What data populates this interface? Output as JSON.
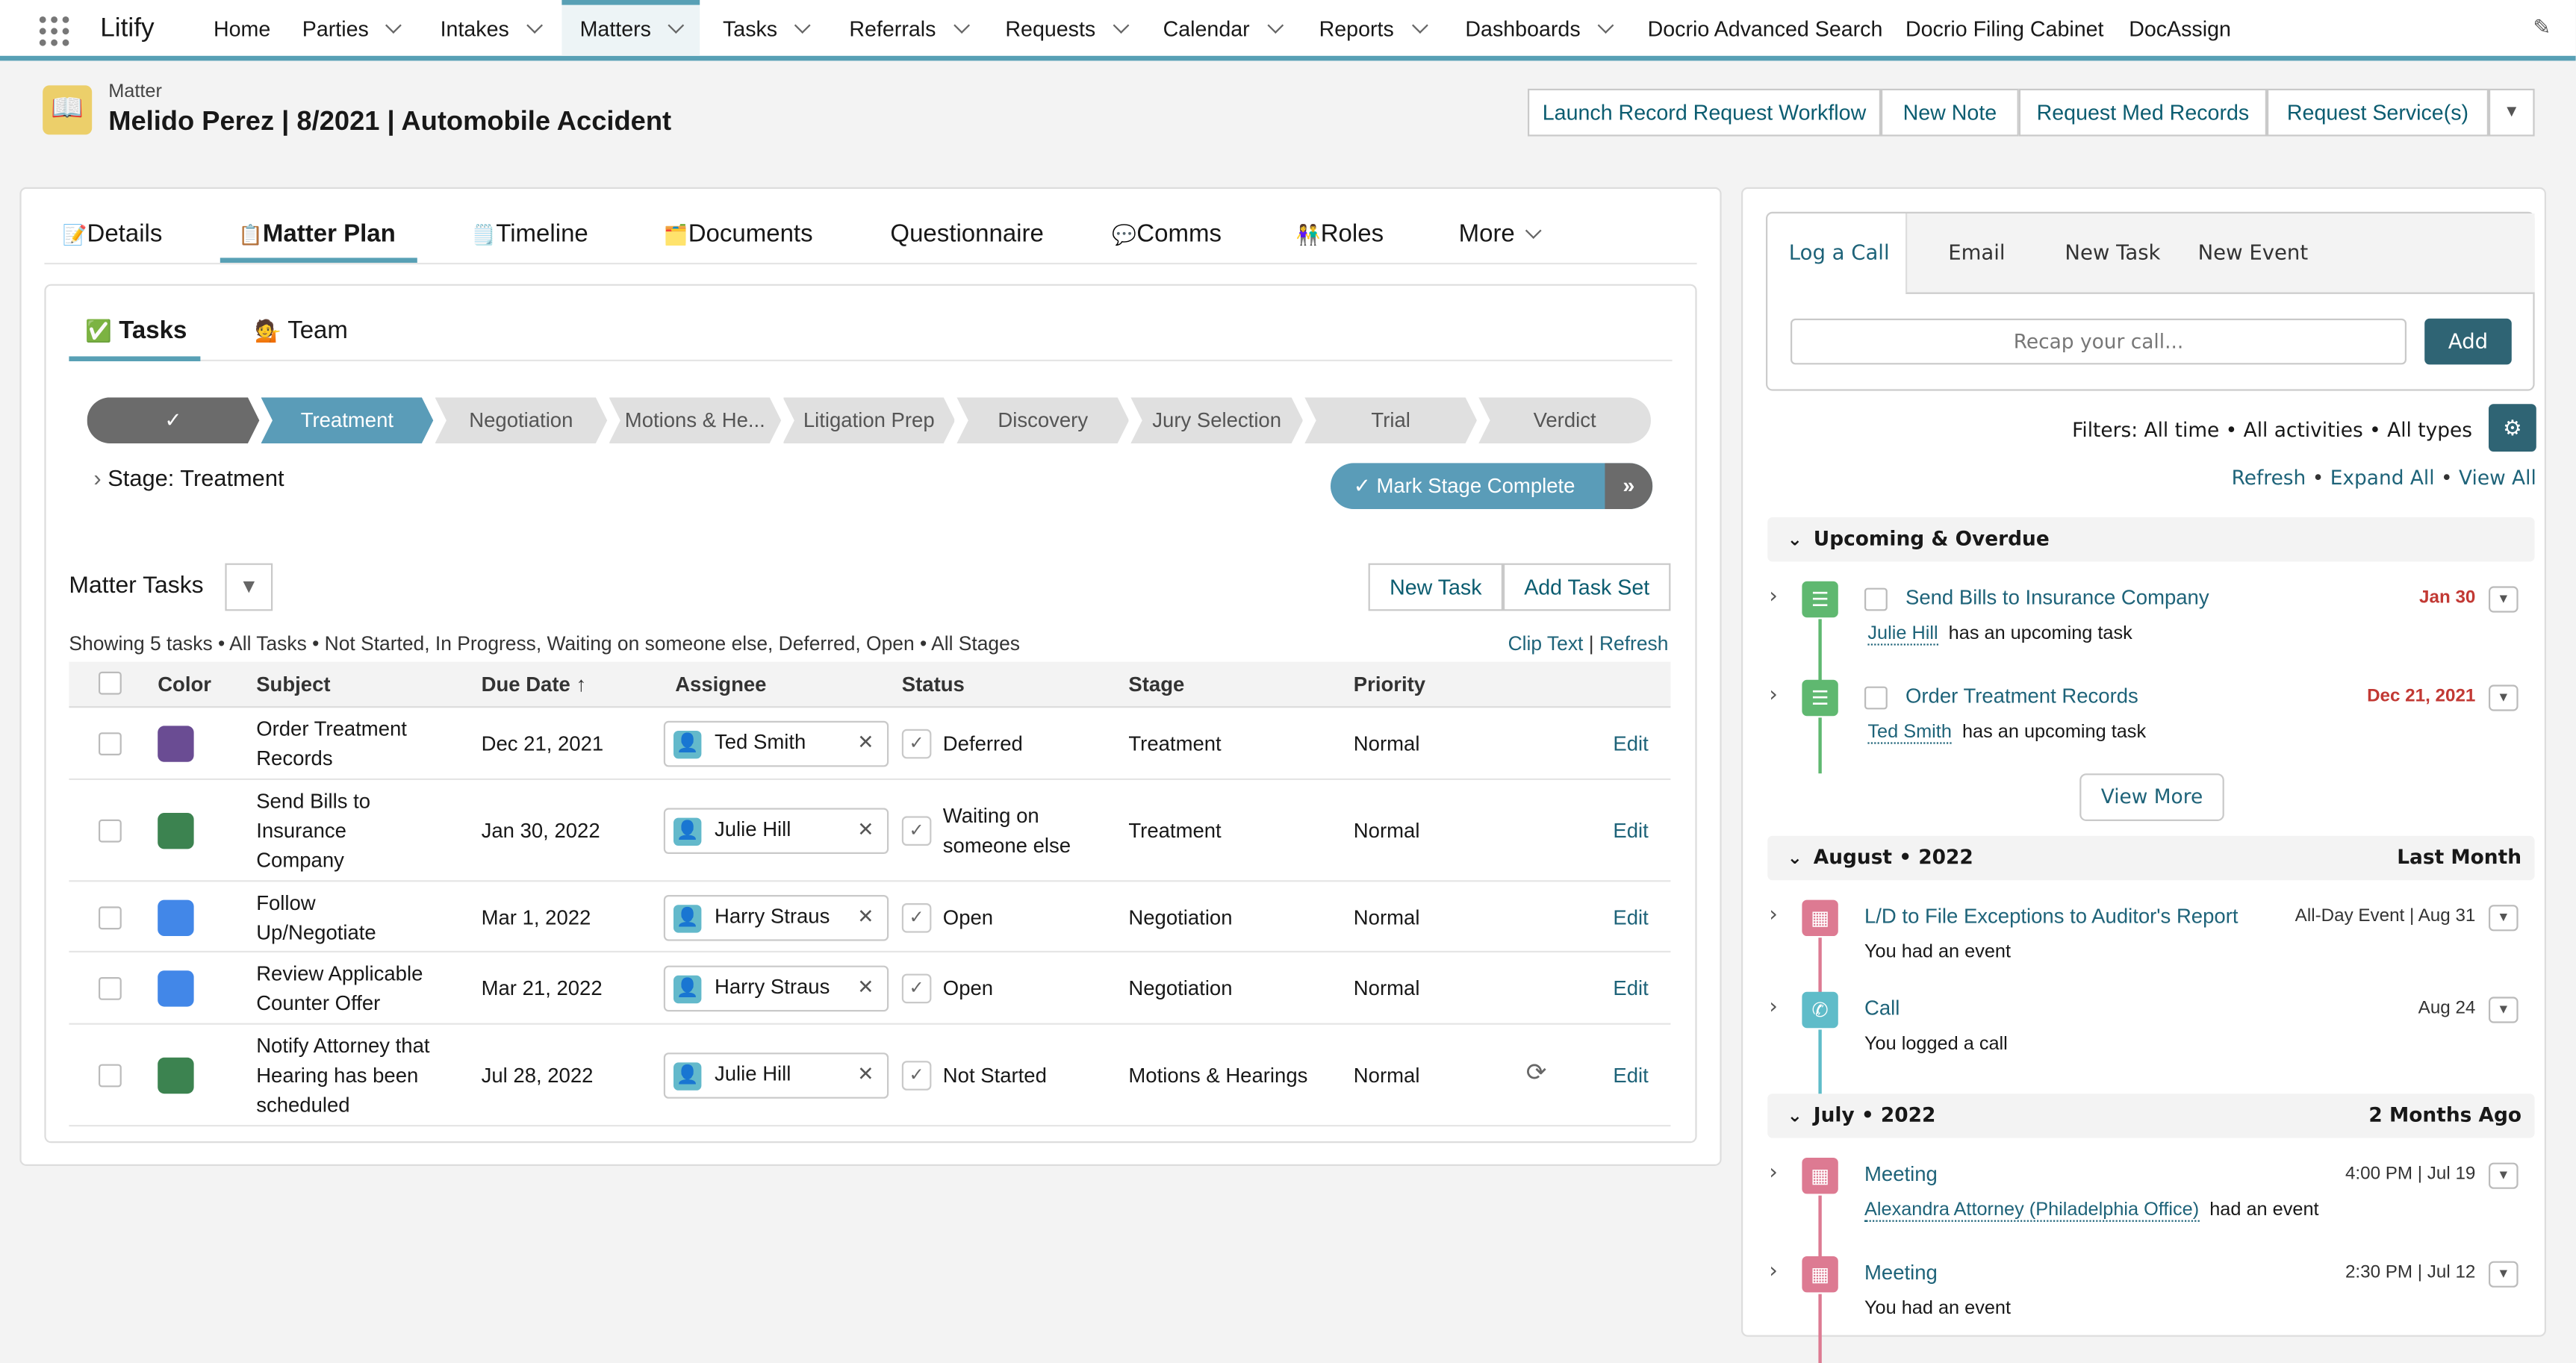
{
  "app": {
    "name": "Litify",
    "nav": [
      {
        "label": "Home",
        "dd": false
      },
      {
        "label": "Parties",
        "dd": true
      },
      {
        "label": "Intakes",
        "dd": true
      },
      {
        "label": "Matters",
        "dd": true,
        "active": true
      },
      {
        "label": "Tasks",
        "dd": true
      },
      {
        "label": "Referrals",
        "dd": true
      },
      {
        "label": "Requests",
        "dd": true
      },
      {
        "label": "Calendar",
        "dd": true
      },
      {
        "label": "Reports",
        "dd": true
      },
      {
        "label": "Dashboards",
        "dd": true
      },
      {
        "label": "Docrio Advanced Search",
        "dd": false
      },
      {
        "label": "Docrio Filing Cabinet",
        "dd": false
      },
      {
        "label": "DocAssign",
        "dd": false
      }
    ]
  },
  "header": {
    "object": "Matter",
    "title": "Melido Perez | 8/2021 | Automobile Accident",
    "actions": [
      "Launch Record Request Workflow",
      "New Note",
      "Request Med Records",
      "Request Service(s)"
    ]
  },
  "tabs": [
    {
      "icon": "📝",
      "label": "Details"
    },
    {
      "icon": "📋",
      "label": "Matter Plan",
      "active": true
    },
    {
      "icon": "🗒️",
      "label": "Timeline"
    },
    {
      "icon": "🗂️",
      "label": "Documents"
    },
    {
      "icon": "",
      "label": "Questionnaire"
    },
    {
      "icon": "💬",
      "label": "Comms"
    },
    {
      "icon": "👫",
      "label": "Roles"
    },
    {
      "icon": "",
      "label": "More"
    }
  ],
  "subtabs": [
    {
      "icon": "✅",
      "label": "Tasks",
      "active": true
    },
    {
      "icon": "💁",
      "label": "Team"
    }
  ],
  "path": {
    "stages": [
      "✓",
      "Treatment",
      "Negotiation",
      "Motions & He...",
      "Litigation Prep",
      "Discovery",
      "Jury Selection",
      "Trial",
      "Verdict"
    ],
    "current": "Treatment",
    "stage_label": "Stage: Treatment",
    "complete_button": "Mark Stage Complete"
  },
  "tasks": {
    "title": "Matter Tasks",
    "new_task": "New Task",
    "add_task_set": "Add Task Set",
    "summary": "Showing 5 tasks • All Tasks • Not Started, In Progress, Waiting on someone else, Deferred, Open • All Stages",
    "clip_text": "Clip Text",
    "refresh": "Refresh",
    "columns": [
      "Color",
      "Subject",
      "Due Date ↑",
      "Assignee",
      "Status",
      "Stage",
      "Priority"
    ],
    "rows": [
      {
        "color": "#6a4c93",
        "subject": "Order Treatment Records",
        "due": "Dec 21, 2021",
        "assignee": "Ted Smith",
        "status": "Deferred",
        "stage": "Treatment",
        "priority": "Normal",
        "edit": "Edit",
        "recurring": false
      },
      {
        "color": "#3c8350",
        "subject": "Send Bills to Insurance Company",
        "due": "Jan 30, 2022",
        "assignee": "Julie Hill",
        "status": "Waiting on someone else",
        "stage": "Treatment",
        "priority": "Normal",
        "edit": "Edit",
        "recurring": false
      },
      {
        "color": "#4287e8",
        "subject": "Follow Up/Negotiate",
        "due": "Mar 1, 2022",
        "assignee": "Harry Straus",
        "status": "Open",
        "stage": "Negotiation",
        "priority": "Normal",
        "edit": "Edit",
        "recurring": false
      },
      {
        "color": "#4287e8",
        "subject": "Review Applicable Counter Offer",
        "due": "Mar 21, 2022",
        "assignee": "Harry Straus",
        "status": "Open",
        "stage": "Negotiation",
        "priority": "Normal",
        "edit": "Edit",
        "recurring": false
      },
      {
        "color": "#3c8350",
        "subject": "Notify Attorney that Hearing has been scheduled",
        "due": "Jul 28, 2022",
        "assignee": "Julie Hill",
        "status": "Not Started",
        "stage": "Motions & Hearings",
        "priority": "Normal",
        "edit": "Edit",
        "recurring": true
      }
    ]
  },
  "activity": {
    "publisher_tabs": [
      "Log a Call",
      "Email",
      "New Task",
      "New Event"
    ],
    "placeholder": "Recap your call...",
    "add": "Add",
    "filters": "Filters: All time • All activities • All types",
    "links": [
      "Refresh",
      "Expand All",
      "View All"
    ],
    "view_more": "View More",
    "sections": [
      {
        "title": "Upcoming & Overdue",
        "right": "",
        "items": [
          {
            "type": "task",
            "title": "Send Bills to Insurance Company",
            "date": "Jan 30",
            "overdue": true,
            "who": "Julie Hill",
            "text": "has an upcoming task"
          },
          {
            "type": "task",
            "title": "Order Treatment Records",
            "date": "Dec 21, 2021",
            "overdue": true,
            "who": "Ted Smith",
            "text": "has an upcoming task"
          }
        ]
      },
      {
        "title": "August • 2022",
        "right": "Last Month",
        "items": [
          {
            "type": "event",
            "title": "L/D to File Exceptions to Auditor's Report",
            "date": "All-Day Event | Aug 31",
            "who": "",
            "text": "You had an event"
          },
          {
            "type": "call",
            "title": "Call",
            "date": "Aug 24",
            "who": "",
            "text": "You logged a call"
          }
        ]
      },
      {
        "title": "July • 2022",
        "right": "2 Months Ago",
        "items": [
          {
            "type": "event",
            "title": "Meeting",
            "date": "4:00 PM | Jul 19",
            "who": "Alexandra Attorney (Philadelphia Office)",
            "text": "had an event"
          },
          {
            "type": "event",
            "title": "Meeting",
            "date": "2:30 PM | Jul 12",
            "who": "",
            "text": "You had an event"
          }
        ]
      }
    ]
  },
  "colors": {
    "accent": "#58a0b5",
    "brand_dark": "#2f6474",
    "overdue": "#c23934",
    "task_icon": "#5fb870",
    "event_icon": "#dd7a92",
    "call_icon": "#5fbcc9"
  }
}
